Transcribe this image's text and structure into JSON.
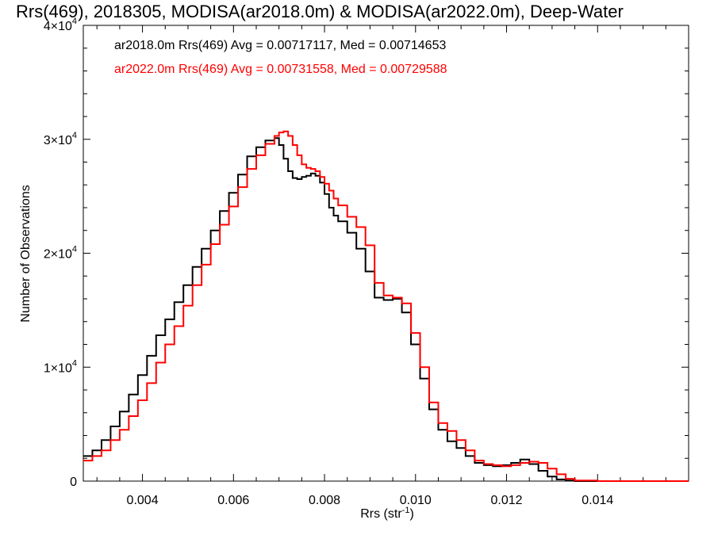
{
  "chart_data": {
    "type": "line",
    "title": "Rrs(469), 2018305, MODISA(ar2018.0m) & MODISA(ar2022.0m), Deep-Water",
    "xlabel": "Rrs (str",
    "xlabel_sup": "-1",
    "xlabel_suffix": ")",
    "ylabel": "Number of Observations",
    "xlim": [
      0.0027,
      0.016
    ],
    "ylim": [
      0,
      40000
    ],
    "x_ticks": [
      {
        "value": 0.004,
        "label": "0.004"
      },
      {
        "value": 0.006,
        "label": "0.006"
      },
      {
        "value": 0.008,
        "label": "0.008"
      },
      {
        "value": 0.01,
        "label": "0.010"
      },
      {
        "value": 0.012,
        "label": "0.012"
      },
      {
        "value": 0.014,
        "label": "0.014"
      }
    ],
    "y_ticks": [
      {
        "value": 0,
        "mantissa": "0",
        "exp": ""
      },
      {
        "value": 10000,
        "mantissa": "1×10",
        "exp": "4"
      },
      {
        "value": 20000,
        "mantissa": "2×10",
        "exp": "4"
      },
      {
        "value": 30000,
        "mantissa": "3×10",
        "exp": "4"
      },
      {
        "value": 40000,
        "mantissa": "4×10",
        "exp": "4"
      }
    ],
    "series": [
      {
        "name": "ar2018.0m",
        "legend": "ar2018.0m Rrs(469) Avg = 0.00717117, Med = 0.00714653",
        "color": "#000000",
        "x": [
          0.0027,
          0.0029,
          0.0031,
          0.0033,
          0.0035,
          0.0037,
          0.0039,
          0.0041,
          0.0043,
          0.0045,
          0.0047,
          0.0049,
          0.0051,
          0.0053,
          0.0055,
          0.0057,
          0.0059,
          0.0061,
          0.0063,
          0.0065,
          0.0067,
          0.0069,
          0.007,
          0.0071,
          0.0072,
          0.0073,
          0.0074,
          0.0075,
          0.0076,
          0.0077,
          0.0078,
          0.0079,
          0.008,
          0.0081,
          0.0082,
          0.0083,
          0.0085,
          0.0087,
          0.0089,
          0.0091,
          0.0093,
          0.0095,
          0.0097,
          0.0099,
          0.0101,
          0.0103,
          0.0105,
          0.0107,
          0.0109,
          0.0111,
          0.0113,
          0.0115,
          0.0117,
          0.0119,
          0.0121,
          0.0123,
          0.0125,
          0.0127,
          0.0129,
          0.0131,
          0.0133,
          0.0135,
          0.014,
          0.015,
          0.016
        ],
        "y": [
          2200,
          2700,
          3600,
          4800,
          6100,
          7600,
          9300,
          11000,
          12800,
          14200,
          15700,
          17200,
          18800,
          20400,
          22000,
          23700,
          25300,
          26900,
          28500,
          29300,
          29900,
          30100,
          29500,
          28300,
          27200,
          26600,
          26500,
          26700,
          26800,
          27000,
          26800,
          26200,
          25200,
          24000,
          23300,
          22800,
          21800,
          20400,
          18400,
          16100,
          15900,
          16000,
          14800,
          12000,
          9000,
          6300,
          4500,
          3500,
          2900,
          2200,
          1600,
          1400,
          1300,
          1400,
          1600,
          1900,
          1500,
          900,
          400,
          150,
          50,
          0,
          0,
          0,
          0
        ]
      },
      {
        "name": "ar2022.0m",
        "legend": "ar2022.0m Rrs(469) Avg = 0.00731558, Med = 0.00729588",
        "color": "#ff0000",
        "x": [
          0.0027,
          0.0029,
          0.0031,
          0.0033,
          0.0035,
          0.0037,
          0.0039,
          0.0041,
          0.0043,
          0.0045,
          0.0047,
          0.0049,
          0.0051,
          0.0053,
          0.0055,
          0.0057,
          0.0059,
          0.0061,
          0.0063,
          0.0065,
          0.0067,
          0.0069,
          0.007,
          0.0071,
          0.0072,
          0.0073,
          0.0074,
          0.0075,
          0.0076,
          0.0077,
          0.0078,
          0.0079,
          0.008,
          0.0081,
          0.0082,
          0.0083,
          0.0085,
          0.0087,
          0.0089,
          0.0091,
          0.0093,
          0.0095,
          0.0097,
          0.0099,
          0.0101,
          0.0103,
          0.0105,
          0.0107,
          0.0109,
          0.0111,
          0.0113,
          0.0115,
          0.0117,
          0.0119,
          0.0121,
          0.0123,
          0.0125,
          0.0127,
          0.0129,
          0.0131,
          0.0133,
          0.0135,
          0.014,
          0.015,
          0.016
        ],
        "y": [
          1800,
          2200,
          2700,
          3600,
          4500,
          5700,
          7100,
          8600,
          10400,
          12000,
          13600,
          15400,
          17200,
          19000,
          20800,
          22500,
          24100,
          25800,
          27400,
          28600,
          29600,
          30300,
          30600,
          30700,
          30300,
          29500,
          28600,
          27800,
          27500,
          27400,
          27200,
          26700,
          26100,
          25500,
          24800,
          24200,
          23200,
          22300,
          20700,
          17400,
          16300,
          16100,
          15600,
          13000,
          10000,
          6900,
          5100,
          4400,
          3600,
          2700,
          1800,
          1500,
          1400,
          1300,
          1400,
          1600,
          1700,
          1600,
          1100,
          600,
          200,
          50,
          0,
          0,
          0
        ]
      }
    ]
  }
}
